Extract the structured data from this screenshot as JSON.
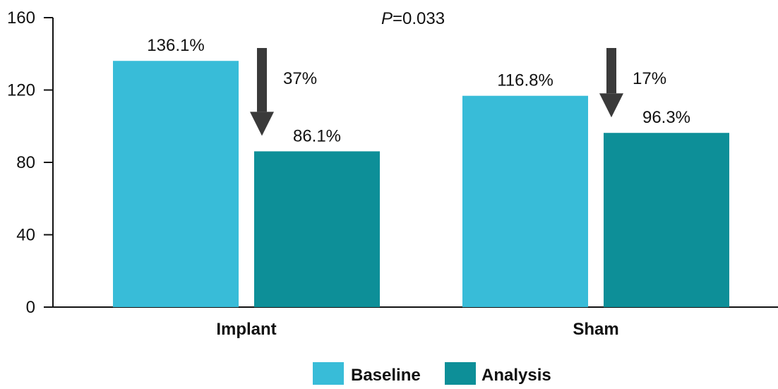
{
  "chart_data": {
    "type": "bar",
    "categories": [
      "Implant",
      "Sham"
    ],
    "series": [
      {
        "name": "Baseline",
        "values": [
          136.1,
          116.8
        ],
        "labels": [
          "136.1%",
          "116.8%"
        ],
        "color": "#38bcd8"
      },
      {
        "name": "Analysis",
        "values": [
          86.1,
          96.3
        ],
        "labels": [
          "86.1%",
          "96.3%"
        ],
        "color": "#0d8f98"
      }
    ],
    "ylim": [
      0,
      160
    ],
    "yticks": [
      "0",
      "40",
      "80",
      "120",
      "160"
    ],
    "grid": false,
    "legend": "bottom",
    "annotations": {
      "p_value_letter": "P",
      "p_value_rest": "=0.033",
      "reductions": [
        "37%",
        "17%"
      ]
    }
  }
}
